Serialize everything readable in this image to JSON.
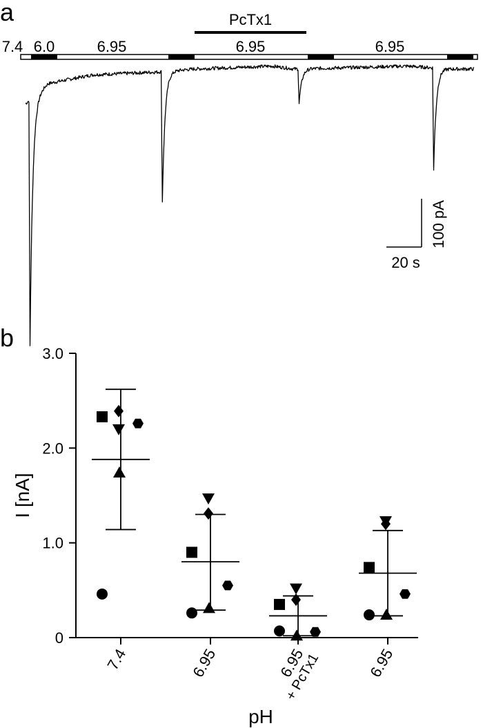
{
  "panel_a": {
    "label": "a",
    "drug_label": "PcTx1",
    "ph_labels": [
      "7.4",
      "6.0",
      "6.95",
      "6.95",
      "6.95"
    ],
    "scale_bar": {
      "time_label": "20 s",
      "current_label": "100 pA"
    },
    "trace": {
      "type": "line",
      "x_unit": "s",
      "y_unit": "pA",
      "baseline": [
        [
          0,
          -60
        ],
        [
          10,
          -25
        ],
        [
          30,
          -10
        ],
        [
          60,
          -5
        ],
        [
          75,
          0
        ],
        [
          110,
          5
        ],
        [
          120,
          0
        ],
        [
          170,
          5
        ],
        [
          190,
          0
        ],
        [
          200,
          0
        ]
      ],
      "peaks": [
        {
          "t": 2,
          "i_pA": -425
        },
        {
          "t": 61,
          "i_pA": -225
        },
        {
          "t": 122,
          "i_pA": -60
        },
        {
          "t": 182,
          "i_pA": -175
        }
      ],
      "drug_interval": [
        74,
        120
      ]
    }
  },
  "chart_data": {
    "type": "scatter",
    "panel_label": "b",
    "categories": [
      "7.4",
      "6.95",
      "6.95",
      "6.95"
    ],
    "category_sublabels": [
      "",
      "",
      "+ PcTx1",
      ""
    ],
    "xlabel": "pH",
    "ylabel": "I [nA]",
    "ylim": [
      0,
      3.0
    ],
    "yticks": [
      "0",
      "1.0",
      "2.0",
      "3.0"
    ],
    "series": [
      {
        "marker": "square",
        "values": [
          2.33,
          0.9,
          0.35,
          0.74
        ]
      },
      {
        "marker": "diamond",
        "values": [
          2.39,
          1.31,
          0.4,
          1.2
        ]
      },
      {
        "marker": "triangle-down",
        "values": [
          2.2,
          1.47,
          0.52,
          1.23
        ]
      },
      {
        "marker": "hexagon",
        "values": [
          2.26,
          0.55,
          0.06,
          0.46
        ]
      },
      {
        "marker": "triangle-up",
        "values": [
          1.74,
          0.31,
          0.02,
          0.24
        ]
      },
      {
        "marker": "circle",
        "values": [
          0.46,
          0.26,
          0.07,
          0.24
        ]
      }
    ],
    "mean": [
      1.88,
      0.8,
      0.23,
      0.68
    ],
    "sd_upper": [
      2.62,
      1.3,
      0.44,
      1.13
    ],
    "sd_lower": [
      1.14,
      0.29,
      0.02,
      0.23
    ]
  }
}
